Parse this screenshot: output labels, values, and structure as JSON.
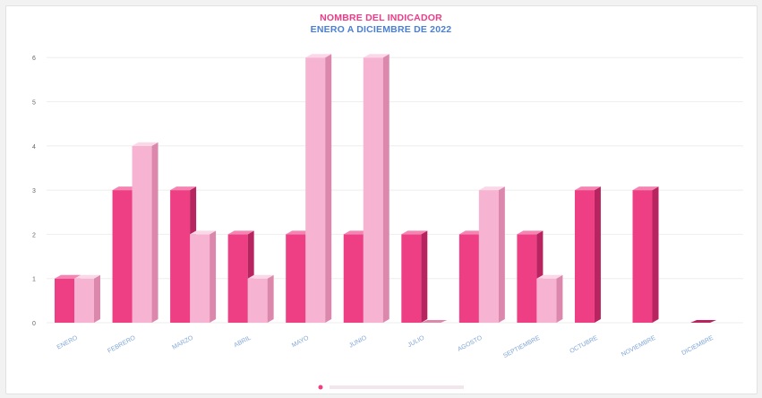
{
  "chart_data": {
    "type": "bar",
    "title": "NOMBRE DEL INDICADOR",
    "subtitle": "ENERO A DICIEMBRE DE 2022",
    "categories": [
      "ENERO",
      "FEBRERO",
      "MARZO",
      "ABRIL",
      "MAYO",
      "JUNIO",
      "JULIO",
      "AGOSTO",
      "SEPTIEMBRE",
      "OCTUBRE",
      "NOVIEMBRE",
      "DICIEMBRE"
    ],
    "series": [
      {
        "values": [
          1,
          3,
          3,
          2,
          2,
          2,
          2,
          2,
          2,
          3,
          3,
          0
        ]
      },
      {
        "values": [
          1,
          4,
          2,
          1,
          6,
          6,
          0,
          3,
          1,
          null,
          null,
          null
        ]
      }
    ],
    "ylim": [
      0,
      6
    ],
    "yticks": [
      "0",
      "1",
      "2",
      "3",
      "4",
      "5",
      "6"
    ],
    "grid": true,
    "legend": "bottom",
    "colors": {
      "series1_front": "#ee3f85",
      "series1_side": "#b8245f",
      "series1_top": "#f584b3",
      "series2_front": "#f7b4d2",
      "series2_side": "#dc88ad",
      "series2_top": "#fbd8e8",
      "title": "#ee3b86",
      "subtitle": "#4a7fd4",
      "axis_text": "#7fa6d9"
    }
  }
}
